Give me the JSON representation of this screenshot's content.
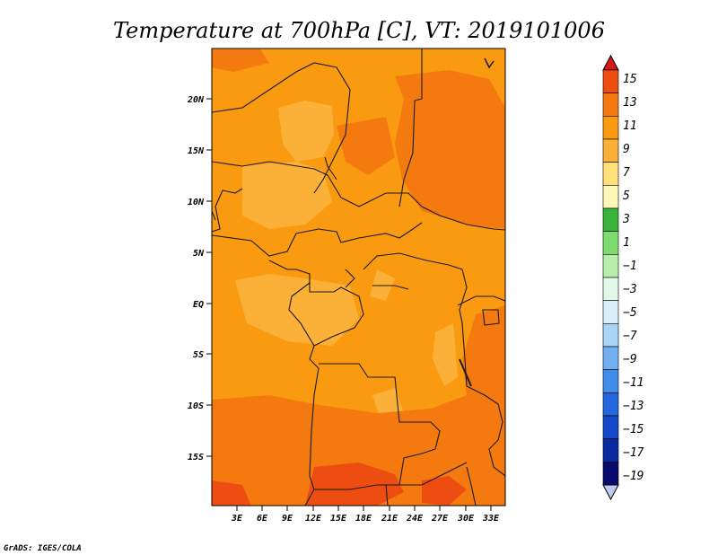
{
  "title": "Temperature at 700hPa [C], VT: 2019101006",
  "credit": "GrADS: IGES/COLA",
  "map": {
    "lat_ticks": [
      "20N",
      "15N",
      "10N",
      "5N",
      "EQ",
      "5S",
      "10S",
      "15S"
    ],
    "lon_ticks": [
      "3E",
      "6E",
      "9E",
      "12E",
      "15E",
      "18E",
      "21E",
      "24E",
      "27E",
      "30E",
      "33E"
    ],
    "colors": {
      "t7": "#fbb138",
      "t9": "#f99a10",
      "t11": "#f47a10",
      "t13": "#ee4d12",
      "border": "#1a1a1a"
    }
  },
  "colorbar": {
    "labels": [
      "15",
      "13",
      "11",
      "9",
      "7",
      "5",
      "3",
      "1",
      "−1",
      "−3",
      "−5",
      "−7",
      "−9",
      "−11",
      "−13",
      "−15",
      "−17",
      "−19"
    ],
    "colors": [
      "#d9161a",
      "#ee4d12",
      "#f47a10",
      "#f99a10",
      "#fbb138",
      "#fde07a",
      "#fcf8b8",
      "#3bb43b",
      "#7cdc6e",
      "#b7eeaa",
      "#e2f8e8",
      "#d8eef9",
      "#a8d4f8",
      "#72b0f2",
      "#418ce8",
      "#2366dd",
      "#1448c8",
      "#0a2aa0",
      "#0a0a6e",
      "#c0c8f0"
    ]
  }
}
